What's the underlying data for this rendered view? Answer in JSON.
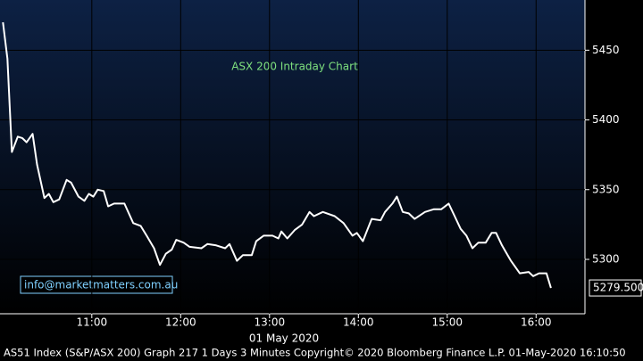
{
  "chart_data": {
    "type": "line",
    "title": "ASX 200 Intraday Chart",
    "x_label": "01 May 2020",
    "footer": "AS51 Index (S&P/ASX 200) Graph 217 1 Days 3 Minutes Copyright© 2020 Bloomberg Finance L.P. 01-May-2020 16:10:50",
    "watermark": "info@marketmatters.com.au",
    "x": [
      "10:00",
      "10:03",
      "10:06",
      "10:10",
      "10:13",
      "10:16",
      "10:20",
      "10:23",
      "10:28",
      "10:31",
      "10:34",
      "10:38",
      "10:43",
      "10:46",
      "10:51",
      "10:55",
      "10:58",
      "11:01",
      "11:04",
      "11:08",
      "11:11",
      "11:15",
      "11:22",
      "11:28",
      "11:33",
      "11:37",
      "11:42",
      "11:46",
      "11:50",
      "11:54",
      "11:57",
      "12:02",
      "12:06",
      "12:14",
      "12:18",
      "12:24",
      "12:30",
      "12:33",
      "12:38",
      "12:42",
      "12:48",
      "12:51",
      "12:56",
      "13:02",
      "13:06",
      "13:08",
      "13:12",
      "13:17",
      "13:22",
      "13:27",
      "13:30",
      "13:36",
      "13:44",
      "13:50",
      "13:56",
      "13:59",
      "14:03",
      "14:09",
      "14:15",
      "14:18",
      "14:23",
      "14:26",
      "14:30",
      "14:34",
      "14:38",
      "14:45",
      "14:51",
      "14:56",
      "15:01",
      "15:05",
      "15:09",
      "15:13",
      "15:17",
      "15:21",
      "15:26",
      "15:30",
      "15:33",
      "15:37",
      "15:43",
      "15:49",
      "15:55",
      "15:58",
      "16:02",
      "16:07",
      "16:10"
    ],
    "series": [
      {
        "name": "AS51 Index",
        "color": "#ffffff",
        "values": [
          5470,
          5444,
          5377,
          5388,
          5387,
          5384,
          5390,
          5368,
          5344,
          5347,
          5341,
          5343,
          5357,
          5355,
          5345,
          5342,
          5347,
          5345,
          5350,
          5349,
          5338,
          5340,
          5340,
          5326,
          5324,
          5317,
          5308,
          5296,
          5304,
          5307,
          5314,
          5312,
          5309,
          5308,
          5311,
          5310,
          5308,
          5311,
          5299,
          5303,
          5303,
          5313,
          5317,
          5317,
          5315,
          5320,
          5315,
          5321,
          5325,
          5334,
          5331,
          5334,
          5331,
          5326,
          5317,
          5319,
          5313,
          5329,
          5328,
          5334,
          5340,
          5345,
          5334,
          5333,
          5329,
          5334,
          5336,
          5336,
          5340,
          5331,
          5322,
          5317,
          5308,
          5312,
          5312,
          5319,
          5319,
          5310,
          5299,
          5290,
          5291,
          5288,
          5290,
          5290,
          5279.5
        ]
      }
    ],
    "last_value": {
      "value": 5279.5,
      "label": "5279.500"
    },
    "xlim": [
      "09:58",
      "16:33"
    ],
    "xticks": [
      "11:00",
      "12:00",
      "13:00",
      "14:00",
      "15:00",
      "16:00"
    ],
    "ylim": [
      5261,
      5486
    ],
    "yticks": [
      5300,
      5350,
      5400,
      5450
    ],
    "grid": true
  }
}
